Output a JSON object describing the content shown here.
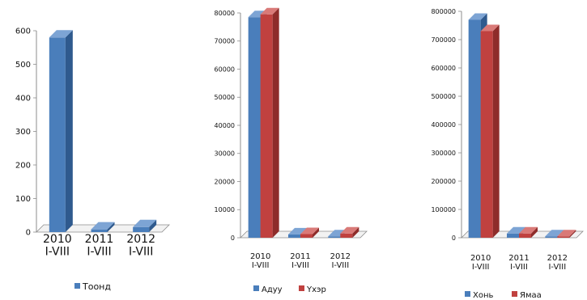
{
  "colors": {
    "blue": "#4a7ebb",
    "blue_side": "#2f5a8e",
    "blue_top": "#7da4d4",
    "red": "#c0413f",
    "red_side": "#8e2c2a",
    "red_top": "#d97a78",
    "grid": "#bfbfbf",
    "axis": "#8c8c8c"
  },
  "chart_data": [
    {
      "type": "bar",
      "categories": [
        "2010 I-VIII",
        "2011 I-VIII",
        "2012 I-VIII"
      ],
      "series": [
        {
          "name": "Тоонд",
          "color": "blue",
          "values": [
            580,
            8,
            15
          ]
        }
      ],
      "ylim": [
        0,
        600
      ],
      "yticks": [
        "0",
        "100",
        "200",
        "300",
        "400",
        "500",
        "600"
      ],
      "title": "",
      "xlabel": "",
      "ylabel": "",
      "grid": false,
      "legend": "bottom"
    },
    {
      "type": "bar",
      "categories": [
        "2010 I-VIII",
        "2011 I-VIII",
        "2012 I-VIII"
      ],
      "series": [
        {
          "name": "Адуу",
          "color": "blue",
          "values": [
            78500,
            1200,
            500
          ]
        },
        {
          "name": "Үхэр",
          "color": "red",
          "values": [
            79500,
            1300,
            1500
          ]
        }
      ],
      "ylim": [
        0,
        80000
      ],
      "yticks": [
        "0",
        "10000",
        "20000",
        "30000",
        "40000",
        "50000",
        "60000",
        "70000",
        "80000"
      ],
      "title": "",
      "xlabel": "",
      "ylabel": "",
      "grid": false,
      "legend": "bottom"
    },
    {
      "type": "bar",
      "categories": [
        "2010 I-VIII",
        "2011 I-VIII",
        "2012 I-VIII"
      ],
      "series": [
        {
          "name": "Хонь",
          "color": "blue",
          "values": [
            770000,
            15000,
            5000
          ]
        },
        {
          "name": "Ямаа",
          "color": "red",
          "values": [
            730000,
            15000,
            5000
          ]
        }
      ],
      "ylim": [
        0,
        800000
      ],
      "yticks": [
        "0",
        "100000",
        "200000",
        "300000",
        "400000",
        "500000",
        "600000",
        "700000",
        "800000"
      ],
      "title": "",
      "xlabel": "",
      "ylabel": "",
      "grid": false,
      "legend": "bottom"
    }
  ]
}
